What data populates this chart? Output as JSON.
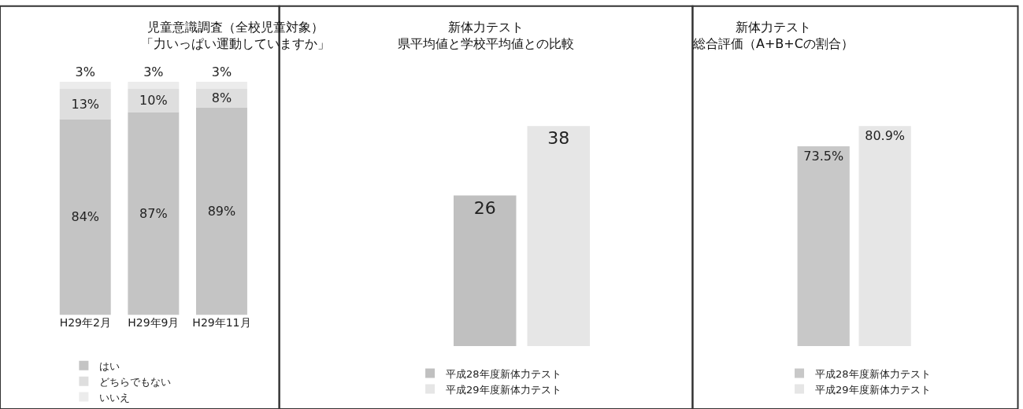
{
  "chart_data": [
    {
      "type": "bar",
      "stacked": true,
      "title": "児童意識調査（全校児童対象）",
      "subtitle": "「力いっぱい運動していますか」",
      "categories": [
        "H29年2月",
        "H29年9月",
        "H29年11月"
      ],
      "series": [
        {
          "name": "はい",
          "color": "#c4c4c4",
          "values": [
            84,
            87,
            89
          ],
          "value_labels": [
            "84%",
            "87%",
            "89%"
          ]
        },
        {
          "name": "どちらでもない",
          "color": "#dedede",
          "values": [
            13,
            10,
            8
          ],
          "value_labels": [
            "13%",
            "10%",
            "8%"
          ]
        },
        {
          "name": "いいえ",
          "color": "#ececec",
          "values": [
            3,
            3,
            3
          ],
          "value_labels": [
            "3%",
            "3%",
            "3%"
          ]
        }
      ],
      "legend": "bottom",
      "tick_labels": "x"
    },
    {
      "type": "bar",
      "title": "新体力テスト",
      "subtitle": "県平均値と学校平均値との比較",
      "categories": [
        null
      ],
      "series": [
        {
          "name": "平成28年度新体力テスト",
          "color": "#c0c0c0",
          "values": [
            26
          ]
        },
        {
          "name": "平成29年度新体力テスト",
          "color": "#e6e6e6",
          "values": [
            38
          ]
        }
      ],
      "data_labels": true,
      "legend": "bottom",
      "tick_labels": false
    },
    {
      "type": "bar",
      "title": "新体力テスト",
      "subtitle": "総合評価（A+B+Cの割合）",
      "categories": [
        null
      ],
      "series": [
        {
          "name": "平成28年度新体力テスト",
          "color": "#c8c8c8",
          "values": [
            73.5
          ],
          "value_labels": [
            "73.5%"
          ]
        },
        {
          "name": "平成29年度新体力テスト",
          "color": "#e6e6e6",
          "values": [
            80.9
          ],
          "value_labels": [
            "80.9%"
          ]
        }
      ],
      "legend": "bottom",
      "tick_labels": false
    }
  ]
}
